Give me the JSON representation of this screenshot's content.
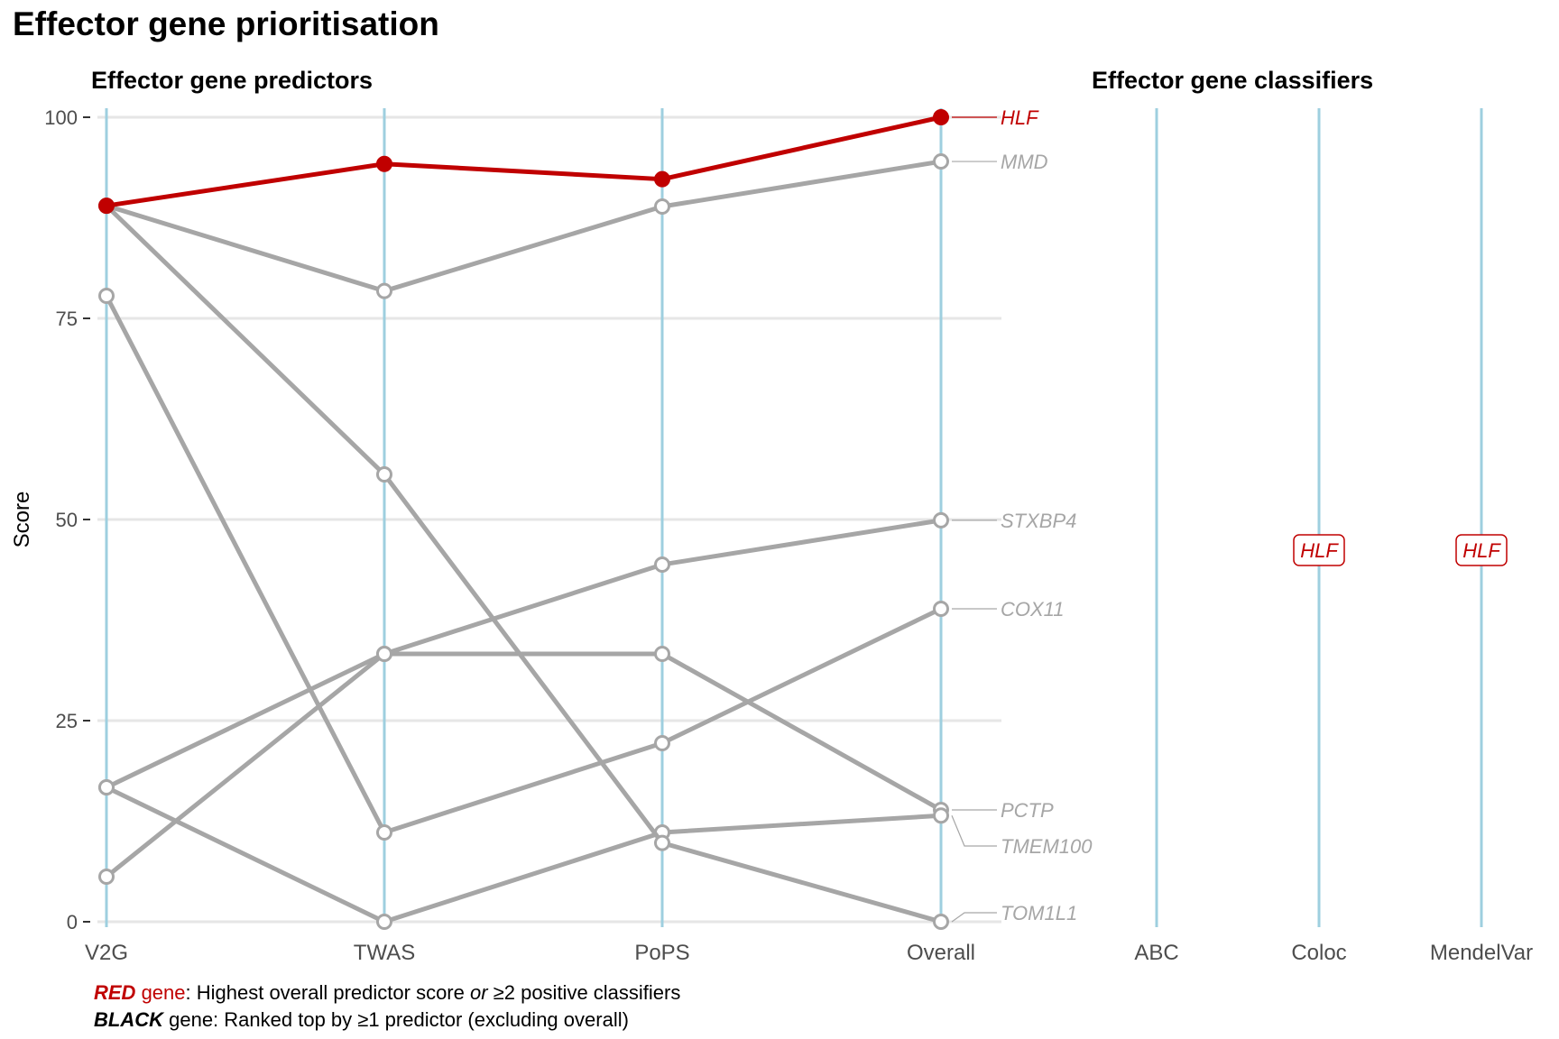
{
  "figure": {
    "title": "Effector gene prioritisation",
    "panels": {
      "predictors_title": "Effector gene predictors",
      "classifiers_title": "Effector gene classifiers"
    },
    "caption": {
      "line1_key": "RED",
      "line1_key_suffix": " gene",
      "line1_text": ": Highest overall predictor score ",
      "line1_or": "or",
      "line1_end": " ≥2 positive classifiers",
      "line2_key": "BLACK",
      "line2_text": " gene: Ranked top by ≥1 predictor (excluding overall)"
    },
    "colors": {
      "highlight": "#c00000",
      "other": "#a6a6a6",
      "axis_line": "#9ecfdf",
      "grid": "#e6e6e6"
    }
  },
  "chart_data": [
    {
      "type": "line",
      "title": "Effector gene predictors",
      "ylabel": "Score",
      "xlabel": "",
      "categories": [
        "V2G",
        "TWAS",
        "PoPS",
        "Overall"
      ],
      "ylim": [
        0,
        100
      ],
      "yticks": [
        0,
        25,
        50,
        75,
        100
      ],
      "grid": "horizontal",
      "series": [
        {
          "name": "HLF",
          "values": [
            89,
            94.2,
            92.3,
            100
          ],
          "highlight": true,
          "label_color": "#c00000"
        },
        {
          "name": "MMD",
          "values": [
            89,
            78.4,
            88.9,
            94.5
          ],
          "highlight": false
        },
        {
          "name": "STXBP4",
          "values": [
            5.6,
            33.3,
            44.4,
            49.9
          ],
          "highlight": false
        },
        {
          "name": "COX11",
          "values": [
            77.8,
            11.1,
            22.2,
            38.9
          ],
          "highlight": false
        },
        {
          "name": "PCTP",
          "values": [
            16.7,
            33.3,
            33.3,
            13.9
          ],
          "highlight": false
        },
        {
          "name": "TMEM100",
          "values": [
            16.7,
            0,
            11.1,
            13.2
          ],
          "highlight": false
        },
        {
          "name": "TOM1L1",
          "values": [
            89,
            55.6,
            9.8,
            0
          ],
          "highlight": false
        }
      ]
    },
    {
      "type": "table",
      "title": "Effector gene classifiers",
      "categories": [
        "ABC",
        "Coloc",
        "MendelVar"
      ],
      "positives": [
        {
          "classifier": "Coloc",
          "gene": "HLF"
        },
        {
          "classifier": "MendelVar",
          "gene": "HLF"
        }
      ]
    }
  ]
}
